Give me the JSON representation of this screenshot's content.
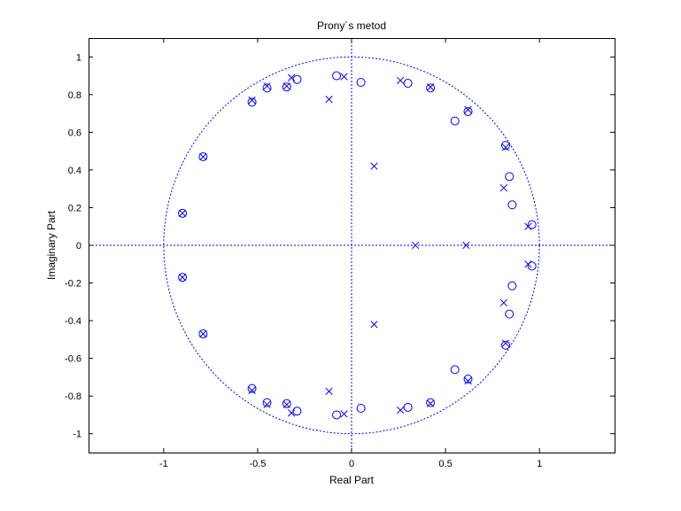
{
  "chart_data": {
    "type": "scatter",
    "title": "Prony´s metod",
    "xlabel": "Real Part",
    "ylabel": "Imaginary Part",
    "xlim": [
      -1.4,
      1.4
    ],
    "ylim": [
      -1.1,
      1.1
    ],
    "xticks": [
      -1,
      -0.5,
      0,
      0.5,
      1
    ],
    "yticks": [
      -1,
      -0.8,
      -0.6,
      -0.4,
      -0.2,
      0,
      0.2,
      0.4,
      0.6,
      0.8,
      1
    ],
    "grid": false,
    "color": "#0000ff",
    "unit_circle": true,
    "series": [
      {
        "marker": "o",
        "points": [
          [
            -0.9,
            0.17
          ],
          [
            -0.9,
            -0.17
          ],
          [
            -0.79,
            0.47
          ],
          [
            -0.79,
            -0.47
          ],
          [
            -0.53,
            0.76
          ],
          [
            -0.53,
            -0.76
          ],
          [
            -0.45,
            0.835
          ],
          [
            -0.45,
            -0.835
          ],
          [
            -0.345,
            0.84
          ],
          [
            -0.345,
            -0.84
          ],
          [
            -0.29,
            0.88
          ],
          [
            -0.29,
            -0.88
          ],
          [
            -0.08,
            0.9
          ],
          [
            -0.08,
            -0.9
          ],
          [
            0.05,
            0.865
          ],
          [
            0.05,
            -0.865
          ],
          [
            0.3,
            0.86
          ],
          [
            0.3,
            -0.86
          ],
          [
            0.42,
            0.835
          ],
          [
            0.42,
            -0.835
          ],
          [
            0.55,
            0.66
          ],
          [
            0.55,
            -0.66
          ],
          [
            0.62,
            0.71
          ],
          [
            0.62,
            -0.71
          ],
          [
            0.82,
            0.53
          ],
          [
            0.82,
            -0.53
          ],
          [
            0.84,
            0.365
          ],
          [
            0.84,
            -0.365
          ],
          [
            0.855,
            0.215
          ],
          [
            0.855,
            -0.215
          ],
          [
            0.96,
            0.11
          ],
          [
            0.96,
            -0.11
          ]
        ]
      },
      {
        "marker": "x",
        "points": [
          [
            -0.9,
            0.17
          ],
          [
            -0.9,
            -0.17
          ],
          [
            -0.79,
            0.47
          ],
          [
            -0.79,
            -0.47
          ],
          [
            -0.53,
            0.77
          ],
          [
            -0.53,
            -0.77
          ],
          [
            -0.45,
            0.845
          ],
          [
            -0.45,
            -0.845
          ],
          [
            -0.345,
            0.845
          ],
          [
            -0.345,
            -0.845
          ],
          [
            -0.32,
            0.89
          ],
          [
            -0.32,
            -0.89
          ],
          [
            -0.12,
            0.775
          ],
          [
            -0.12,
            -0.775
          ],
          [
            -0.04,
            0.895
          ],
          [
            -0.04,
            -0.895
          ],
          [
            0.12,
            0.42
          ],
          [
            0.12,
            -0.42
          ],
          [
            0.26,
            0.875
          ],
          [
            0.26,
            -0.875
          ],
          [
            0.42,
            0.84
          ],
          [
            0.42,
            -0.84
          ],
          [
            0.62,
            0.72
          ],
          [
            0.62,
            -0.72
          ],
          [
            0.82,
            0.52
          ],
          [
            0.82,
            -0.52
          ],
          [
            0.81,
            0.305
          ],
          [
            0.81,
            -0.305
          ],
          [
            0.94,
            0.1
          ],
          [
            0.94,
            -0.1
          ],
          [
            0.34,
            0.0
          ],
          [
            0.61,
            0.0
          ]
        ]
      }
    ]
  }
}
